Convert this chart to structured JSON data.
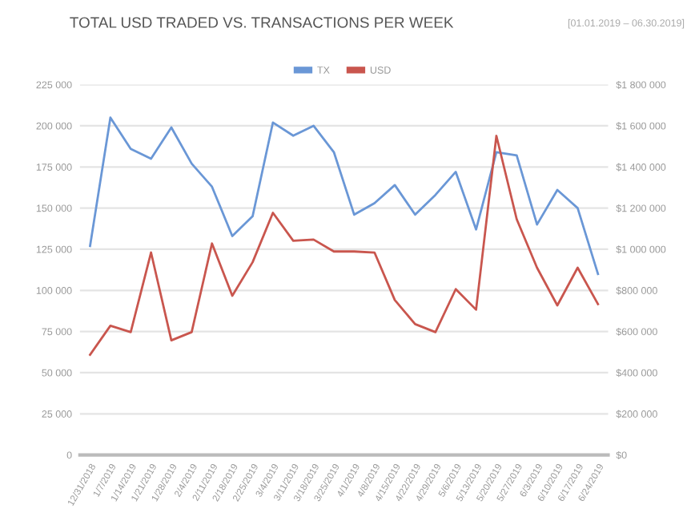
{
  "chart_data": {
    "type": "line",
    "title": "TOTAL USD TRADED VS. TRANSACTIONS PER WEEK",
    "subtitle": "[01.01.2019 – 06.30.2019]",
    "categories": [
      "12/31/2018",
      "1/7/2019",
      "1/14/2019",
      "1/21/2019",
      "1/28/2019",
      "2/4/2019",
      "2/11/2019",
      "2/18/2019",
      "2/25/2019",
      "3/4/2019",
      "3/11/2019",
      "3/18/2019",
      "3/25/2019",
      "4/1/2019",
      "4/8/2019",
      "4/15/2019",
      "4/22/2019",
      "4/29/2019",
      "5/6/2019",
      "5/13/2019",
      "5/20/2019",
      "5/27/2019",
      "6/3/2019",
      "6/10/2019",
      "6/17/2019",
      "6/24/2019"
    ],
    "series": [
      {
        "name": "TX",
        "color": "#6a97d6",
        "values": [
          127000,
          205000,
          186000,
          180000,
          199000,
          177000,
          163000,
          133000,
          145000,
          202000,
          194000,
          200000,
          184000,
          146000,
          153000,
          164000,
          146000,
          158000,
          172000,
          137000,
          184000,
          182000,
          140000,
          161000,
          150000,
          110000
        ]
      },
      {
        "name": "USD",
        "color": "#c9564e",
        "axis": "y2",
        "values": [
          487000,
          628000,
          597000,
          984000,
          557000,
          597000,
          1028000,
          774000,
          937000,
          1177000,
          1041000,
          1047000,
          989000,
          989000,
          984000,
          753000,
          636000,
          597000,
          806000,
          706000,
          1551000,
          1146000,
          910000,
          727000,
          910000,
          733000
        ]
      }
    ],
    "ylim": [
      0,
      225000
    ],
    "yticks": [
      {
        "value": 0,
        "label": "0"
      },
      {
        "value": 25000,
        "label": "25 000"
      },
      {
        "value": 50000,
        "label": "50 000"
      },
      {
        "value": 75000,
        "label": "75 000"
      },
      {
        "value": 100000,
        "label": "100 000"
      },
      {
        "value": 125000,
        "label": "125 000"
      },
      {
        "value": 150000,
        "label": "150 000"
      },
      {
        "value": 175000,
        "label": "175 000"
      },
      {
        "value": 200000,
        "label": "200 000"
      },
      {
        "value": 225000,
        "label": "225 000"
      }
    ],
    "y2lim": [
      0,
      1800000
    ],
    "y2ticks": [
      {
        "value": 0,
        "label": "$0"
      },
      {
        "value": 200000,
        "label": "$200 000"
      },
      {
        "value": 400000,
        "label": "$400 000"
      },
      {
        "value": 600000,
        "label": "$600 000"
      },
      {
        "value": 800000,
        "label": "$800 000"
      },
      {
        "value": 1000000,
        "label": "$1 000 000"
      },
      {
        "value": 1200000,
        "label": "$1 200 000"
      },
      {
        "value": 1400000,
        "label": "$1 400 000"
      },
      {
        "value": 1600000,
        "label": "$1 600 000"
      },
      {
        "value": 1800000,
        "label": "$1 800 000"
      }
    ],
    "grid": "y",
    "legend": "top",
    "marker": "none",
    "line_style": "solid"
  }
}
